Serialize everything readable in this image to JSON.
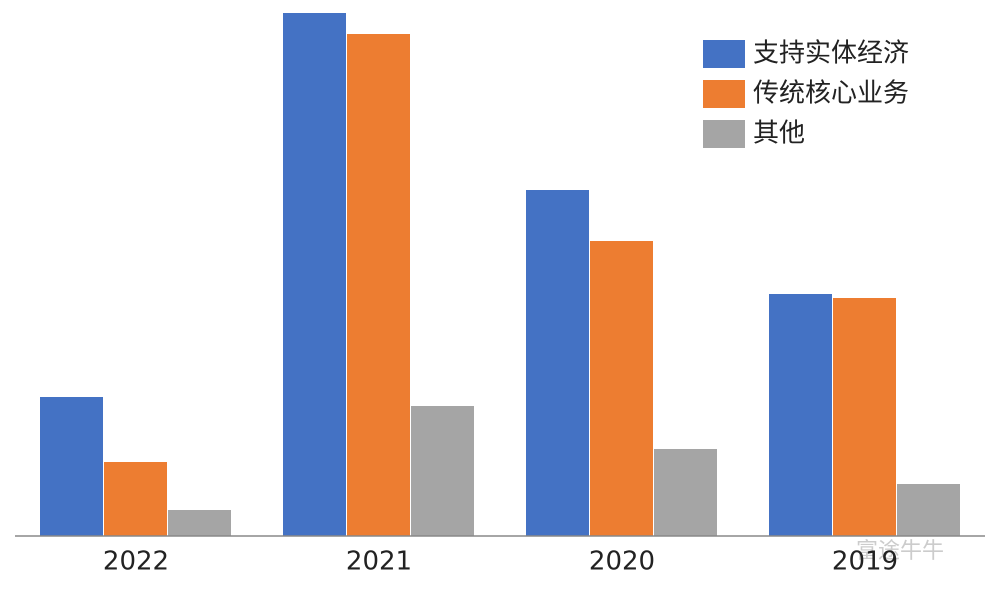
{
  "chart_data": {
    "type": "bar",
    "categories": [
      "2022",
      "2021",
      "2020",
      "2019"
    ],
    "series": [
      {
        "name": "支持实体经济",
        "color": "#4472c4",
        "values": [
          139,
          523,
          346,
          242
        ]
      },
      {
        "name": "传统核心业务",
        "color": "#ed7d31",
        "values": [
          74,
          502,
          295,
          238
        ]
      },
      {
        "name": "其他",
        "color": "#a5a5a5",
        "values": [
          26,
          130,
          87,
          52
        ]
      }
    ],
    "legend": "top-right",
    "watermark": "富途牛牛"
  }
}
